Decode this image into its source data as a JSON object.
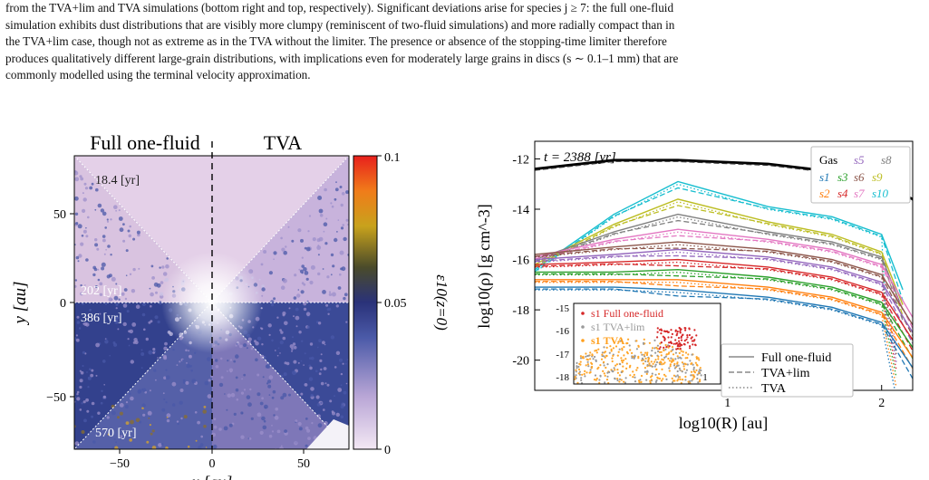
{
  "paragraph": {
    "line1": "from the TVA+lim and TVA simulations (bottom right and top, respectively). Significant deviations arise for species j ≥ 7: the full one-fluid",
    "line2": "simulation exhibits dust distributions that are visibly more clumpy (reminiscent of two-fluid simulations) and more radially compact than in",
    "line3": "the TVA+lim case, though not as extreme as in the TVA without the limiter. The presence or absence of the stopping-time limiter therefore",
    "line4": "produces qualitatively different large-grain distributions, with implications even for moderately large grains in discs (s ∼ 0.1–1 mm) that are",
    "line5": "commonly modelled using the terminal velocity approximation."
  },
  "left_figure": {
    "label_full": "Full one-fluid",
    "label_tva": "TVA",
    "time_labels": [
      "18.4 [yr]",
      "202 [yr]",
      "386 [yr]",
      "570 [yr]"
    ],
    "x_ticks": [
      "−50",
      "0",
      "50"
    ],
    "y_ticks": [
      "50",
      "0",
      "−50"
    ],
    "xlabel": "x [au]",
    "ylabel": "y [au]",
    "colorbar_ticks": [
      "0.1",
      "0.05",
      "0"
    ],
    "colorbar_label": "ε10(z=0)",
    "colors": {
      "light": "#e4d0e8",
      "dark": "#2e3b84",
      "mid": "#8f7fbf",
      "hot": "#e0a020"
    }
  },
  "chart_data": {
    "type": "line",
    "annotation": "t = 2388 [yr]",
    "xlabel": "log10(R) [au]",
    "ylabel": "log10(ρ) [g cm^-3]",
    "xscale": "log",
    "xlim": [
      0.42,
      2.3
    ],
    "ylim": [
      -21.2,
      -11.3
    ],
    "x_ticks": [
      "1",
      "2"
    ],
    "y_ticks": [
      "-12",
      "-14",
      "-16",
      "-18",
      "-20"
    ],
    "legend_species": [
      {
        "label": "Gas",
        "color": "#000000"
      },
      {
        "label": "s5",
        "color": "#9467bd"
      },
      {
        "label": "s8",
        "color": "#7f7f7f"
      },
      {
        "label": "s1",
        "color": "#1f77b4"
      },
      {
        "label": "s3",
        "color": "#2ca02c"
      },
      {
        "label": "s6",
        "color": "#8c564b"
      },
      {
        "label": "s9",
        "color": "#bcbd22"
      },
      {
        "label": "s2",
        "color": "#ff7f0e"
      },
      {
        "label": "s4",
        "color": "#d62728"
      },
      {
        "label": "s7",
        "color": "#e377c2"
      },
      {
        "label": "s10",
        "color": "#17becf"
      }
    ],
    "legend_styles": [
      "Full one-fluid",
      "TVA+lim",
      "TVA"
    ],
    "series": [
      {
        "name": "Gas",
        "color": "#000000",
        "x": [
          0.42,
          0.6,
          0.8,
          1.2,
          1.6,
          2.0,
          2.3
        ],
        "y": [
          -12.4,
          -12.05,
          -12.05,
          -12.2,
          -12.5,
          -13.0,
          -13.6
        ]
      },
      {
        "name": "s10",
        "color": "#17becf",
        "x": [
          0.42,
          0.6,
          0.8,
          1.2,
          1.6,
          2.0,
          2.2
        ],
        "y": [
          -16.4,
          -14.2,
          -12.9,
          -13.9,
          -14.3,
          -15.0,
          -17.2
        ]
      },
      {
        "name": "s9",
        "color": "#bcbd22",
        "x": [
          0.42,
          0.6,
          0.8,
          1.2,
          1.6,
          2.0,
          2.2
        ],
        "y": [
          -16.2,
          -14.6,
          -13.6,
          -14.5,
          -15.0,
          -15.7,
          -17.8
        ]
      },
      {
        "name": "s8",
        "color": "#7f7f7f",
        "x": [
          0.42,
          0.6,
          0.8,
          1.2,
          1.6,
          2.0,
          2.2
        ],
        "y": [
          -16.0,
          -14.9,
          -14.2,
          -14.9,
          -15.3,
          -15.9,
          -18.0
        ]
      },
      {
        "name": "s7",
        "color": "#e377c2",
        "x": [
          0.42,
          0.6,
          0.8,
          1.2,
          1.6,
          2.0,
          2.3
        ],
        "y": [
          -15.9,
          -15.2,
          -14.8,
          -15.2,
          -15.6,
          -16.2,
          -18.3
        ]
      },
      {
        "name": "s6",
        "color": "#8c564b",
        "x": [
          0.42,
          0.6,
          0.8,
          1.2,
          1.6,
          2.0,
          2.3
        ],
        "y": [
          -15.8,
          -15.5,
          -15.3,
          -15.6,
          -16.0,
          -16.6,
          -18.6
        ]
      },
      {
        "name": "s5",
        "color": "#9467bd",
        "x": [
          0.42,
          0.6,
          0.8,
          1.2,
          1.6,
          2.0,
          2.3
        ],
        "y": [
          -16.0,
          -15.8,
          -15.6,
          -15.9,
          -16.3,
          -16.9,
          -18.9
        ]
      },
      {
        "name": "s4",
        "color": "#d62728",
        "x": [
          0.42,
          0.6,
          0.8,
          1.2,
          1.6,
          2.0,
          2.3
        ],
        "y": [
          -16.2,
          -16.1,
          -16.0,
          -16.3,
          -16.7,
          -17.3,
          -19.2
        ]
      },
      {
        "name": "s3",
        "color": "#2ca02c",
        "x": [
          0.42,
          0.6,
          0.8,
          1.2,
          1.6,
          2.0,
          2.3
        ],
        "y": [
          -16.5,
          -16.5,
          -16.4,
          -16.7,
          -17.1,
          -17.7,
          -19.5
        ]
      },
      {
        "name": "s2",
        "color": "#ff7f0e",
        "x": [
          0.42,
          0.6,
          0.8,
          1.2,
          1.6,
          2.0,
          2.3
        ],
        "y": [
          -16.8,
          -16.8,
          -16.8,
          -17.1,
          -17.5,
          -18.1,
          -19.9
        ]
      },
      {
        "name": "s1",
        "color": "#1f77b4",
        "x": [
          0.42,
          0.6,
          0.8,
          1.2,
          1.6,
          2.0,
          2.3
        ],
        "y": [
          -17.1,
          -17.1,
          -17.2,
          -17.5,
          -17.9,
          -18.5,
          -20.3
        ]
      }
    ],
    "inset": {
      "y_ticks": [
        "-15",
        "-16",
        "-17",
        "-18"
      ],
      "x_ticks": [
        "1"
      ],
      "legend": [
        {
          "label": "s1 Full one-fluid",
          "color": "#d62728"
        },
        {
          "label": "s1 TVA+lim",
          "color": "#9a9a9a"
        },
        {
          "label": "s1 TVA",
          "color": "#ff9f1c"
        }
      ]
    }
  }
}
